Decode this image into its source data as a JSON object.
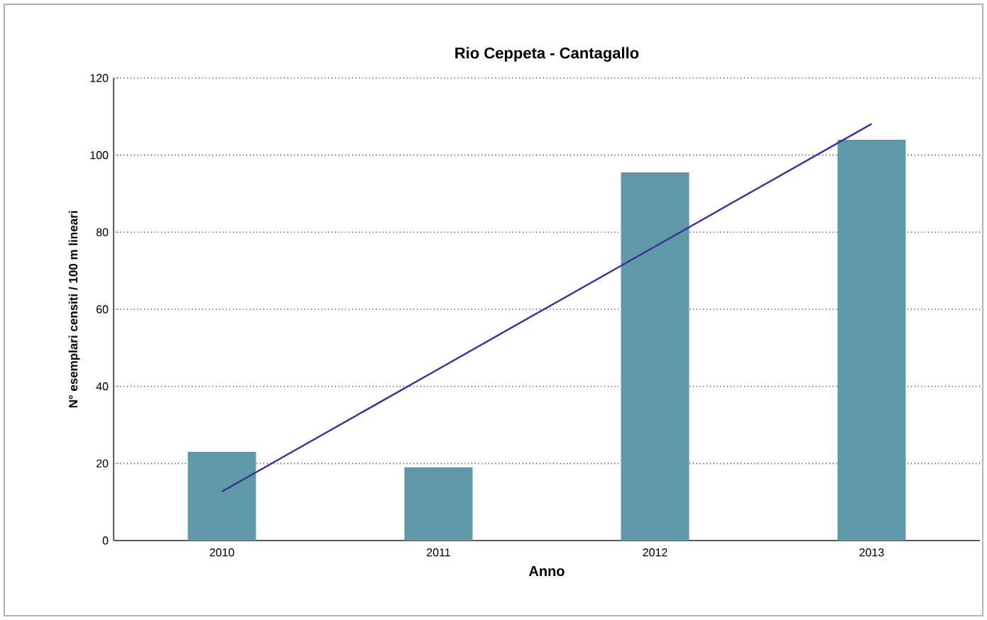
{
  "chart_data": {
    "type": "bar",
    "title": "Rio Ceppeta - Cantagallo",
    "xlabel": "Anno",
    "ylabel": "N° esemplari censiti / 100 m lineari",
    "categories": [
      "2010",
      "2011",
      "2012",
      "2013"
    ],
    "series": [
      {
        "color": "#5f98a6",
        "values": [
          23,
          19,
          95.5,
          104
        ]
      },
      {
        "type": "line",
        "color": "#3a2f9e",
        "values": [
          12.7,
          44.5,
          76.3,
          108.1
        ]
      }
    ],
    "ylim": [
      0,
      120
    ],
    "yticks": [
      0,
      20,
      40,
      60,
      80,
      100,
      120
    ],
    "grid": "y"
  }
}
